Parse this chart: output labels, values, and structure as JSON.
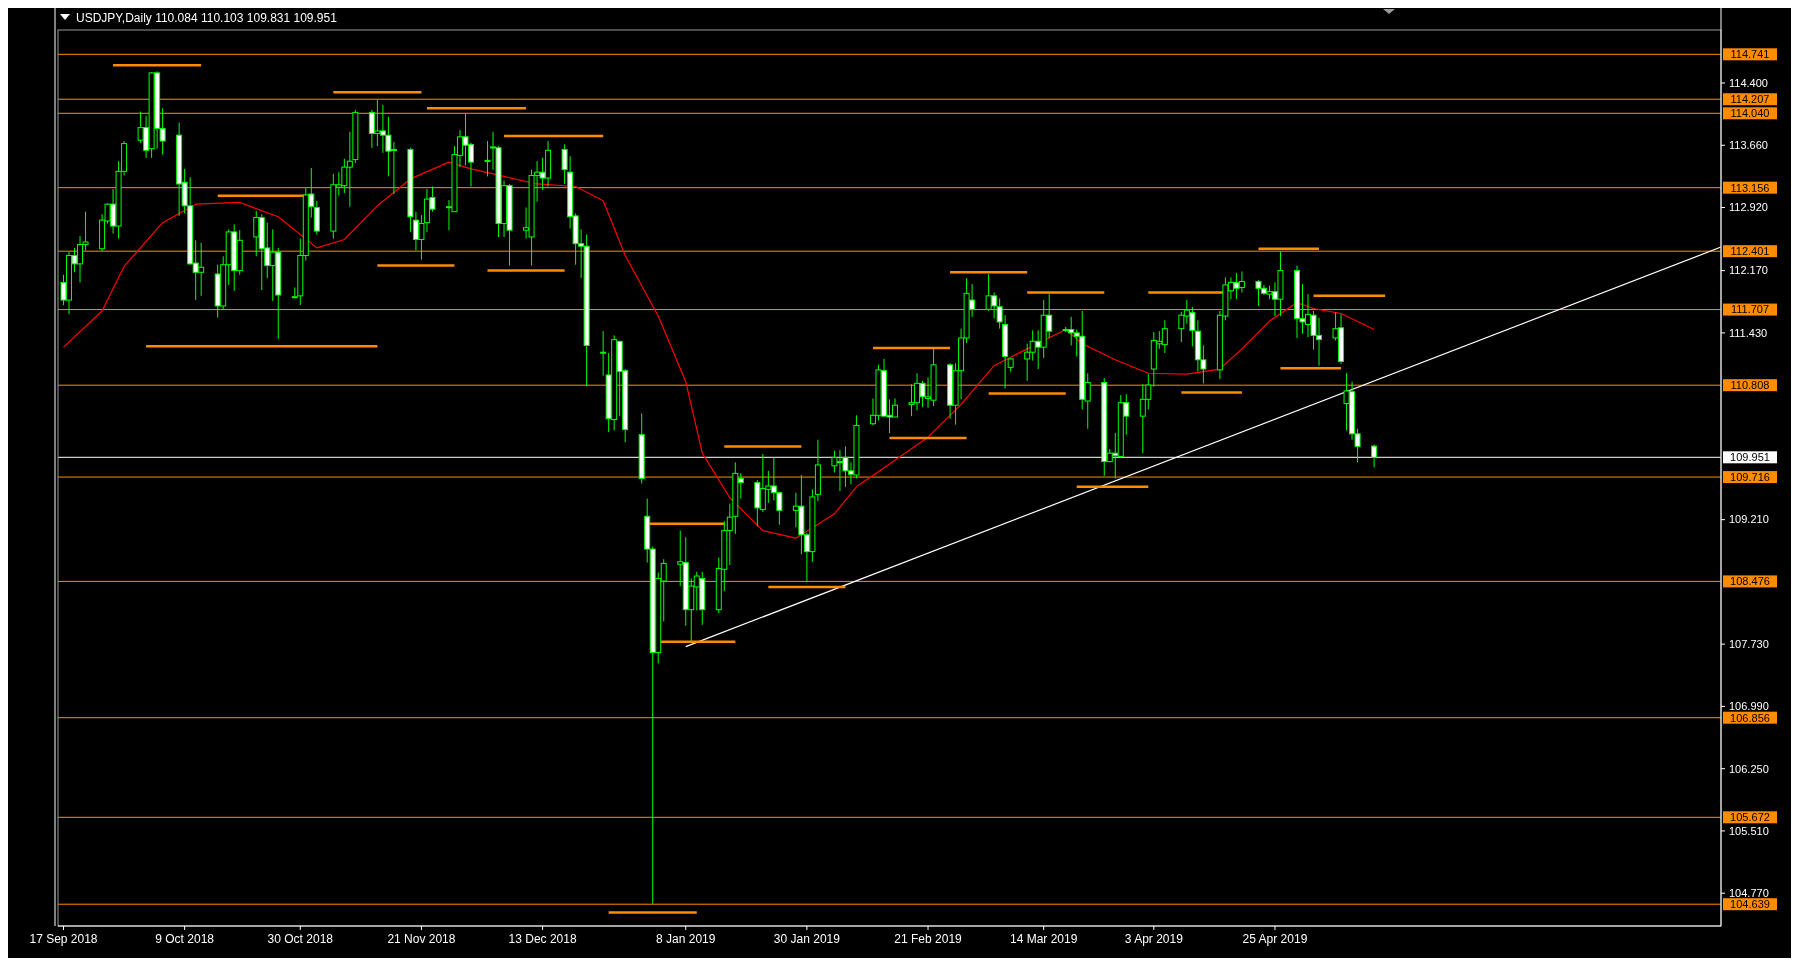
{
  "chart_data": {
    "type": "candlestick",
    "title": "USDJPY,Daily  110.084 110.103 109.831 109.951",
    "color": "#00ff00",
    "x": [
      "2018-09-17",
      "2018-09-18",
      "2018-09-19",
      "2018-09-20",
      "2018-09-21",
      "2018-09-24",
      "2018-09-25",
      "2018-09-26",
      "2018-09-27",
      "2018-09-28",
      "2018-10-01",
      "2018-10-02",
      "2018-10-03",
      "2018-10-04",
      "2018-10-05",
      "2018-10-08",
      "2018-10-09",
      "2018-10-10",
      "2018-10-11",
      "2018-10-12",
      "2018-10-15",
      "2018-10-16",
      "2018-10-17",
      "2018-10-18",
      "2018-10-19",
      "2018-10-22",
      "2018-10-23",
      "2018-10-24",
      "2018-10-25",
      "2018-10-26",
      "2018-10-29",
      "2018-10-30",
      "2018-10-31",
      "2018-11-01",
      "2018-11-02",
      "2018-11-05",
      "2018-11-06",
      "2018-11-07",
      "2018-11-08",
      "2018-11-09",
      "2018-11-12",
      "2018-11-13",
      "2018-11-14",
      "2018-11-15",
      "2018-11-16",
      "2018-11-19",
      "2018-11-20",
      "2018-11-21",
      "2018-11-22",
      "2018-11-23",
      "2018-11-26",
      "2018-11-27",
      "2018-11-28",
      "2018-11-29",
      "2018-11-30",
      "2018-12-03",
      "2018-12-04",
      "2018-12-05",
      "2018-12-06",
      "2018-12-07",
      "2018-12-10",
      "2018-12-11",
      "2018-12-12",
      "2018-12-13",
      "2018-12-14",
      "2018-12-17",
      "2018-12-18",
      "2018-12-19",
      "2018-12-20",
      "2018-12-21",
      "2018-12-24",
      "2018-12-25",
      "2018-12-26",
      "2018-12-27",
      "2018-12-28",
      "2018-12-31",
      "2019-01-01",
      "2019-01-02",
      "2019-01-03",
      "2019-01-04",
      "2019-01-07",
      "2019-01-08",
      "2019-01-09",
      "2019-01-10",
      "2019-01-11",
      "2019-01-14",
      "2019-01-15",
      "2019-01-16",
      "2019-01-17",
      "2019-01-18",
      "2019-01-21",
      "2019-01-22",
      "2019-01-23",
      "2019-01-24",
      "2019-01-25",
      "2019-01-28",
      "2019-01-29",
      "2019-01-30",
      "2019-01-31",
      "2019-02-01",
      "2019-02-04",
      "2019-02-05",
      "2019-02-06",
      "2019-02-07",
      "2019-02-08",
      "2019-02-11",
      "2019-02-12",
      "2019-02-13",
      "2019-02-14",
      "2019-02-15",
      "2019-02-18",
      "2019-02-19",
      "2019-02-20",
      "2019-02-21",
      "2019-02-22",
      "2019-02-25",
      "2019-02-26",
      "2019-02-27",
      "2019-02-28",
      "2019-03-01",
      "2019-03-04",
      "2019-03-05",
      "2019-03-06",
      "2019-03-07",
      "2019-03-08",
      "2019-03-11",
      "2019-03-12",
      "2019-03-13",
      "2019-03-14",
      "2019-03-15",
      "2019-03-18",
      "2019-03-19",
      "2019-03-20",
      "2019-03-21",
      "2019-03-22",
      "2019-03-25",
      "2019-03-26",
      "2019-03-27",
      "2019-03-28",
      "2019-03-29",
      "2019-04-01",
      "2019-04-02",
      "2019-04-03",
      "2019-04-04",
      "2019-04-05",
      "2019-04-08",
      "2019-04-09",
      "2019-04-10",
      "2019-04-11",
      "2019-04-12",
      "2019-04-15",
      "2019-04-16",
      "2019-04-17",
      "2019-04-18",
      "2019-04-19",
      "2019-04-22",
      "2019-04-23",
      "2019-04-24",
      "2019-04-25",
      "2019-04-26",
      "2019-04-29",
      "2019-04-30",
      "2019-05-01",
      "2019-05-02",
      "2019-05-03",
      "2019-05-06",
      "2019-05-07",
      "2019-05-08",
      "2019-05-09",
      "2019-05-10",
      "2019-05-13"
    ],
    "ohlc": [
      [
        112.03,
        112.12,
        111.76,
        111.82
      ],
      [
        111.82,
        112.39,
        111.65,
        112.35
      ],
      [
        112.35,
        112.44,
        112.15,
        112.25
      ],
      [
        112.25,
        112.58,
        112.03,
        112.48
      ],
      [
        112.48,
        112.87,
        112.41,
        112.51
      ],
      [
        112.43,
        112.84,
        112.4,
        112.77
      ],
      [
        112.76,
        112.97,
        112.73,
        112.96
      ],
      [
        112.96,
        113.14,
        112.61,
        112.7
      ],
      [
        112.7,
        113.47,
        112.55,
        113.35
      ],
      [
        113.35,
        113.71,
        113.3,
        113.68
      ],
      [
        113.72,
        114.06,
        113.69,
        113.87
      ],
      [
        113.87,
        114.01,
        113.51,
        113.6
      ],
      [
        113.62,
        114.53,
        113.51,
        114.52
      ],
      [
        114.52,
        114.54,
        113.62,
        113.86
      ],
      [
        113.86,
        114.1,
        113.55,
        113.71
      ],
      [
        113.78,
        113.93,
        112.82,
        113.2
      ],
      [
        113.22,
        113.38,
        112.85,
        112.94
      ],
      [
        112.94,
        113.28,
        112.24,
        112.25
      ],
      [
        112.26,
        112.53,
        111.82,
        112.15
      ],
      [
        112.15,
        112.5,
        111.87,
        112.21
      ],
      [
        112.13,
        112.24,
        111.61,
        111.75
      ],
      [
        111.75,
        112.34,
        111.71,
        112.24
      ],
      [
        112.24,
        112.66,
        112.0,
        112.63
      ],
      [
        112.63,
        112.72,
        111.93,
        112.17
      ],
      [
        112.17,
        112.65,
        112.12,
        112.53
      ],
      [
        112.57,
        112.88,
        112.34,
        112.8
      ],
      [
        112.8,
        112.84,
        111.94,
        112.43
      ],
      [
        112.44,
        112.74,
        112.08,
        112.23
      ],
      [
        112.23,
        112.66,
        111.81,
        112.39
      ],
      [
        112.39,
        112.44,
        111.36,
        111.88
      ],
      [
        111.86,
        111.97,
        111.84,
        111.86
      ],
      [
        111.87,
        112.55,
        111.76,
        112.35
      ],
      [
        112.35,
        113.15,
        112.29,
        113.07
      ],
      [
        113.08,
        113.39,
        112.8,
        112.93
      ],
      [
        112.92,
        113.0,
        112.6,
        112.64
      ],
      [
        112.64,
        113.32,
        112.55,
        113.19
      ],
      [
        113.16,
        113.34,
        113.06,
        113.19
      ],
      [
        113.18,
        113.5,
        113.09,
        113.4
      ],
      [
        113.4,
        113.82,
        112.93,
        113.47
      ],
      [
        113.49,
        114.08,
        113.45,
        114.05
      ],
      [
        114.05,
        114.08,
        113.63,
        113.8
      ],
      [
        113.8,
        114.2,
        113.65,
        113.83
      ],
      [
        113.83,
        114.14,
        113.57,
        113.78
      ],
      [
        113.78,
        114.0,
        113.29,
        113.59
      ],
      [
        113.61,
        113.7,
        113.08,
        113.61
      ],
      [
        113.61,
        113.63,
        112.63,
        112.81
      ],
      [
        112.77,
        112.87,
        112.41,
        112.54
      ],
      [
        112.54,
        112.83,
        112.3,
        112.73
      ],
      [
        112.74,
        113.14,
        112.63,
        113.02
      ],
      [
        113.04,
        113.17,
        112.87,
        112.9
      ],
      [
        112.93,
        113.01,
        112.65,
        112.93
      ],
      [
        112.87,
        113.65,
        112.87,
        113.55
      ],
      [
        113.54,
        113.84,
        113.4,
        113.76
      ],
      [
        113.76,
        114.04,
        113.42,
        113.66
      ],
      [
        113.67,
        113.69,
        113.17,
        113.46
      ],
      [
        113.47,
        113.71,
        113.29,
        113.48
      ],
      [
        113.64,
        113.82,
        113.37,
        113.64
      ],
      [
        113.63,
        113.65,
        112.57,
        112.73
      ],
      [
        112.73,
        113.24,
        112.57,
        113.18
      ],
      [
        113.18,
        113.2,
        112.23,
        112.65
      ],
      [
        112.65,
        112.92,
        112.55,
        112.68
      ],
      [
        112.57,
        113.37,
        112.23,
        113.3
      ],
      [
        113.3,
        113.47,
        112.99,
        113.34
      ],
      [
        113.34,
        113.51,
        113.13,
        113.27
      ],
      [
        113.27,
        113.71,
        113.17,
        113.6
      ],
      [
        113.61,
        113.67,
        113.2,
        113.37
      ],
      [
        113.34,
        113.53,
        112.67,
        112.81
      ],
      [
        112.82,
        112.85,
        112.24,
        112.49
      ],
      [
        112.49,
        112.66,
        112.08,
        112.46
      ],
      [
        112.46,
        112.6,
        110.8,
        111.28
      ],
      [
        111.2,
        111.45,
        110.92,
        111.2
      ],
      [
        110.93,
        111.19,
        110.25,
        110.41
      ],
      [
        110.4,
        111.4,
        110.27,
        111.35
      ],
      [
        111.33,
        111.33,
        110.44,
        110.97
      ],
      [
        110.98,
        111.0,
        110.13,
        110.28
      ],
      [
        110.22,
        110.47,
        109.64,
        109.7
      ],
      [
        109.25,
        109.46,
        108.7,
        108.86
      ],
      [
        108.86,
        108.89,
        104.64,
        107.63
      ],
      [
        107.63,
        108.58,
        107.5,
        108.51
      ],
      [
        108.48,
        108.74,
        108.0,
        108.69
      ],
      [
        108.68,
        109.08,
        108.42,
        108.71
      ],
      [
        108.7,
        109.0,
        107.95,
        108.14
      ],
      [
        108.14,
        108.51,
        107.75,
        108.42
      ],
      [
        108.41,
        108.59,
        108.13,
        108.54
      ],
      [
        108.51,
        108.59,
        107.96,
        108.14
      ],
      [
        108.14,
        108.76,
        108.1,
        108.63
      ],
      [
        108.62,
        109.19,
        108.36,
        109.08
      ],
      [
        109.08,
        109.4,
        108.67,
        109.24
      ],
      [
        109.25,
        109.89,
        109.04,
        109.76
      ],
      [
        109.7,
        109.76,
        109.46,
        109.65
      ],
      [
        109.65,
        109.68,
        109.13,
        109.35
      ],
      [
        109.33,
        109.99,
        109.3,
        109.58
      ],
      [
        109.57,
        109.79,
        109.41,
        109.61
      ],
      [
        109.61,
        109.95,
        109.44,
        109.53
      ],
      [
        109.53,
        109.54,
        109.15,
        109.32
      ],
      [
        109.32,
        109.53,
        109.12,
        109.37
      ],
      [
        109.37,
        109.74,
        108.8,
        109.03
      ],
      [
        109.03,
        109.05,
        108.47,
        108.83
      ],
      [
        108.83,
        109.57,
        108.71,
        109.48
      ],
      [
        109.51,
        110.16,
        109.43,
        109.86
      ],
      [
        109.85,
        110.03,
        109.77,
        109.95
      ],
      [
        109.9,
        110.04,
        109.55,
        109.9
      ],
      [
        109.95,
        110.08,
        109.6,
        109.79
      ],
      [
        109.79,
        109.89,
        109.63,
        109.75
      ],
      [
        109.74,
        110.45,
        109.7,
        110.33
      ],
      [
        110.35,
        110.65,
        110.33,
        110.45
      ],
      [
        110.45,
        111.05,
        110.39,
        110.99
      ],
      [
        110.98,
        111.12,
        110.44,
        110.44
      ],
      [
        110.45,
        110.64,
        110.24,
        110.43
      ],
      [
        110.43,
        110.65,
        110.43,
        110.57
      ],
      [
        110.58,
        110.82,
        110.44,
        110.6
      ],
      [
        110.6,
        110.95,
        110.51,
        110.83
      ],
      [
        110.83,
        110.86,
        110.55,
        110.67
      ],
      [
        110.65,
        110.9,
        110.54,
        110.67
      ],
      [
        110.63,
        111.24,
        110.56,
        111.05
      ],
      [
        111.05,
        111.07,
        110.41,
        110.57
      ],
      [
        110.57,
        111.07,
        110.34,
        110.98
      ],
      [
        110.98,
        111.48,
        110.64,
        111.37
      ],
      [
        111.37,
        112.08,
        111.31,
        111.9
      ],
      [
        111.82,
        112.01,
        111.62,
        111.71
      ],
      [
        111.71,
        112.13,
        111.69,
        111.87
      ],
      [
        111.87,
        111.91,
        111.6,
        111.75
      ],
      [
        111.74,
        111.84,
        111.48,
        111.56
      ],
      [
        111.53,
        111.64,
        110.77,
        111.15
      ],
      [
        111.02,
        111.13,
        110.97,
        111.12
      ],
      [
        111.12,
        111.3,
        110.86,
        111.2
      ],
      [
        111.2,
        111.46,
        111.1,
        111.33
      ],
      [
        111.33,
        111.46,
        111.0,
        111.26
      ],
      [
        111.26,
        111.82,
        111.13,
        111.64
      ],
      [
        111.64,
        111.89,
        111.37,
        111.45
      ],
      [
        111.47,
        111.5,
        111.44,
        111.47
      ],
      [
        111.47,
        111.62,
        111.28,
        111.43
      ],
      [
        111.43,
        111.47,
        111.15,
        111.39
      ],
      [
        111.39,
        111.69,
        110.52,
        110.64
      ],
      [
        110.62,
        110.95,
        110.29,
        110.84
      ],
      [
        110.84,
        110.89,
        109.73,
        109.9
      ],
      [
        109.9,
        110.05,
        109.89,
        110.0
      ],
      [
        110.0,
        110.24,
        109.7,
        109.97
      ],
      [
        109.96,
        110.69,
        109.94,
        110.6
      ],
      [
        110.6,
        110.7,
        110.22,
        110.44
      ],
      [
        110.44,
        110.82,
        110.0,
        110.64
      ],
      [
        110.64,
        110.94,
        110.52,
        110.81
      ],
      [
        111.0,
        111.44,
        110.79,
        111.34
      ],
      [
        111.3,
        111.45,
        111.24,
        111.33
      ],
      [
        111.29,
        111.58,
        111.19,
        111.48
      ],
      [
        111.48,
        111.68,
        111.32,
        111.64
      ],
      [
        111.63,
        111.82,
        111.54,
        111.7
      ],
      [
        111.67,
        111.74,
        111.27,
        111.46
      ],
      [
        111.45,
        111.58,
        110.97,
        111.11
      ],
      [
        111.11,
        111.28,
        110.83,
        111.0
      ],
      [
        110.99,
        111.69,
        110.88,
        111.64
      ],
      [
        111.63,
        112.09,
        111.58,
        112.0
      ],
      [
        111.93,
        112.09,
        111.83,
        112.03
      ],
      [
        112.03,
        112.14,
        111.83,
        111.96
      ],
      [
        111.97,
        112.16,
        111.91,
        112.04
      ],
      [
        112.04,
        112.06,
        111.75,
        111.96
      ],
      [
        111.96,
        112.0,
        111.88,
        111.9
      ],
      [
        111.89,
        111.99,
        111.83,
        111.92
      ],
      [
        111.92,
        112.03,
        111.63,
        111.83
      ],
      [
        111.83,
        112.4,
        111.63,
        112.17
      ],
      [
        112.17,
        112.23,
        111.37,
        111.6
      ],
      [
        111.6,
        112.01,
        111.42,
        111.56
      ],
      [
        111.53,
        111.89,
        111.38,
        111.65
      ],
      [
        111.64,
        111.69,
        111.23,
        111.4
      ],
      [
        111.4,
        111.61,
        111.04,
        111.35
      ],
      [
        111.37,
        111.67,
        111.34,
        111.48
      ],
      [
        111.49,
        111.65,
        111.06,
        111.09
      ],
      [
        110.59,
        110.95,
        110.27,
        110.74
      ],
      [
        110.73,
        110.85,
        110.16,
        110.23
      ],
      [
        110.23,
        110.29,
        109.89,
        110.08
      ],
      [
        110.084,
        110.103,
        109.831,
        109.951
      ]
    ],
    "series": [
      {
        "type": "line",
        "color": "#ff0000",
        "x": [
          "2018-09-17",
          "2018-09-24",
          "2018-09-28",
          "2018-10-05",
          "2018-10-11",
          "2018-10-19",
          "2018-10-26",
          "2018-11-02",
          "2018-11-07",
          "2018-11-13",
          "2018-11-19",
          "2018-11-26",
          "2018-11-30",
          "2018-12-06",
          "2018-12-12",
          "2018-12-19",
          "2018-12-24",
          "2018-12-28",
          "2019-01-03",
          "2019-01-08",
          "2019-01-11",
          "2019-01-16",
          "2019-01-22",
          "2019-01-28",
          "2019-02-04",
          "2019-02-08",
          "2019-02-14",
          "2019-02-21",
          "2019-02-27",
          "2019-03-05",
          "2019-03-11",
          "2019-03-18",
          "2019-03-21",
          "2019-03-27",
          "2019-04-02",
          "2019-04-09",
          "2019-04-15",
          "2019-04-19",
          "2019-04-24",
          "2019-04-29",
          "2019-05-02",
          "2019-05-07",
          "2019-05-13"
        ],
        "values": [
          111.26,
          111.69,
          112.22,
          112.74,
          112.96,
          112.98,
          112.81,
          112.44,
          112.54,
          112.94,
          113.26,
          113.46,
          113.38,
          113.29,
          113.2,
          113.17,
          113.0,
          112.35,
          111.63,
          110.85,
          110.0,
          109.47,
          109.08,
          108.99,
          109.28,
          109.6,
          109.87,
          110.19,
          110.58,
          111.04,
          111.24,
          111.47,
          111.3,
          111.11,
          110.95,
          110.94,
          111.0,
          111.24,
          111.57,
          111.79,
          111.72,
          111.66,
          111.47
        ]
      },
      {
        "type": "line",
        "color": "#ffffff",
        "x": [
          "2019-01-08",
          "2019-07-15"
        ],
        "values": [
          107.7,
          112.45
        ]
      },
      {
        "type": "line",
        "color": "#ff8c00",
        "x": [
          "2018-09-26",
          "2018-10-12"
        ],
        "values": [
          114.61,
          114.61
        ]
      },
      {
        "type": "line",
        "color": "#ff8c00",
        "x": [
          "2018-11-05",
          "2018-11-21"
        ],
        "values": [
          114.29,
          114.29
        ]
      },
      {
        "type": "line",
        "color": "#ff8c00",
        "x": [
          "2018-11-22",
          "2018-12-10"
        ],
        "values": [
          114.1,
          114.1
        ]
      },
      {
        "type": "line",
        "color": "#ff8c00",
        "x": [
          "2018-12-06",
          "2018-12-24"
        ],
        "values": [
          113.77,
          113.77
        ]
      },
      {
        "type": "line",
        "color": "#ff8c00",
        "x": [
          "2018-10-15",
          "2018-10-31"
        ],
        "values": [
          113.06,
          113.06
        ]
      },
      {
        "type": "line",
        "color": "#ff8c00",
        "x": [
          "2018-11-13",
          "2018-11-27"
        ],
        "values": [
          112.23,
          112.23
        ]
      },
      {
        "type": "line",
        "color": "#ff8c00",
        "x": [
          "2018-12-03",
          "2018-12-17"
        ],
        "values": [
          112.17,
          112.17
        ]
      },
      {
        "type": "line",
        "color": "#ff8c00",
        "x": [
          "2018-10-02",
          "2018-11-13"
        ],
        "values": [
          111.27,
          111.27
        ]
      },
      {
        "type": "line",
        "color": "#ff8c00",
        "x": [
          "2018-12-25",
          "2019-01-10"
        ],
        "values": [
          104.54,
          104.54
        ]
      },
      {
        "type": "line",
        "color": "#ff8c00",
        "x": [
          "2019-01-01",
          "2019-01-15"
        ],
        "values": [
          109.16,
          109.16
        ]
      },
      {
        "type": "line",
        "color": "#ff8c00",
        "x": [
          "2019-01-03",
          "2019-01-17"
        ],
        "values": [
          107.76,
          107.76
        ]
      },
      {
        "type": "line",
        "color": "#ff8c00",
        "x": [
          "2019-01-15",
          "2019-01-29"
        ],
        "values": [
          110.08,
          110.08
        ]
      },
      {
        "type": "line",
        "color": "#ff8c00",
        "x": [
          "2019-01-23",
          "2019-02-06"
        ],
        "values": [
          108.41,
          108.41
        ]
      },
      {
        "type": "line",
        "color": "#ff8c00",
        "x": [
          "2019-02-11",
          "2019-02-25"
        ],
        "values": [
          111.25,
          111.25
        ]
      },
      {
        "type": "line",
        "color": "#ff8c00",
        "x": [
          "2019-02-14",
          "2019-02-28"
        ],
        "values": [
          110.18,
          110.18
        ]
      },
      {
        "type": "line",
        "color": "#ff8c00",
        "x": [
          "2019-02-25",
          "2019-03-11"
        ],
        "values": [
          112.15,
          112.15
        ]
      },
      {
        "type": "line",
        "color": "#ff8c00",
        "x": [
          "2019-03-04",
          "2019-03-18"
        ],
        "values": [
          110.71,
          110.71
        ]
      },
      {
        "type": "line",
        "color": "#ff8c00",
        "x": [
          "2019-03-11",
          "2019-03-25"
        ],
        "values": [
          111.91,
          111.91
        ]
      },
      {
        "type": "line",
        "color": "#ff8c00",
        "x": [
          "2019-03-20",
          "2019-04-02"
        ],
        "values": [
          109.6,
          109.6
        ]
      },
      {
        "type": "line",
        "color": "#ff8c00",
        "x": [
          "2019-04-02",
          "2019-04-16"
        ],
        "values": [
          111.91,
          111.91
        ]
      },
      {
        "type": "line",
        "color": "#ff8c00",
        "x": [
          "2019-04-08",
          "2019-04-19"
        ],
        "values": [
          110.72,
          110.72
        ]
      },
      {
        "type": "line",
        "color": "#ff8c00",
        "x": [
          "2019-04-22",
          "2019-05-03"
        ],
        "values": [
          112.43,
          112.43
        ]
      },
      {
        "type": "line",
        "color": "#ff8c00",
        "x": [
          "2019-04-26",
          "2019-05-07"
        ],
        "values": [
          111.01,
          111.01
        ]
      },
      {
        "type": "line",
        "color": "#ff8c00",
        "x": [
          "2019-05-02",
          "2019-05-15"
        ],
        "values": [
          111.87,
          111.87
        ]
      }
    ],
    "ref_lines": [
      {
        "axis": "y",
        "value": 114.741,
        "label": "114.741",
        "color": "#ff8c00"
      },
      {
        "axis": "y",
        "value": 114.207,
        "label": "114.207",
        "color": "#ff8c00"
      },
      {
        "axis": "y",
        "value": 114.04,
        "label": "114.040",
        "color": "#ff8c00"
      },
      {
        "axis": "y",
        "value": 113.156,
        "label": "113.156",
        "color": "#ff8c00"
      },
      {
        "axis": "y",
        "value": 112.401,
        "label": "112.401",
        "color": "#ff8c00"
      },
      {
        "axis": "y",
        "value": 111.707,
        "label": "111.707",
        "color": "#ff8c00"
      },
      {
        "axis": "y",
        "value": 110.808,
        "label": "110.808",
        "color": "#ff8c00"
      },
      {
        "axis": "y",
        "value": 109.951,
        "label": "109.951",
        "color": "#ffffff"
      },
      {
        "axis": "y",
        "value": 109.716,
        "label": "109.716",
        "color": "#ff8c00"
      },
      {
        "axis": "y",
        "value": 108.476,
        "label": "108.476",
        "color": "#ff8c00"
      },
      {
        "axis": "y",
        "value": 106.856,
        "label": "106.856",
        "color": "#ff8c00"
      },
      {
        "axis": "y",
        "value": 105.672,
        "label": "105.672",
        "color": "#ff8c00"
      },
      {
        "axis": "y",
        "value": 104.639,
        "label": "104.639",
        "color": "#ff8c00"
      }
    ],
    "xlim": [
      "2018-09-16",
      "2019-07-15"
    ],
    "xticks": [
      {
        "value": "2018-09-17",
        "label": "17 Sep 2018"
      },
      {
        "value": "2018-10-09",
        "label": "9 Oct 2018"
      },
      {
        "value": "2018-10-30",
        "label": "30 Oct 2018"
      },
      {
        "value": "2018-11-21",
        "label": "21 Nov 2018"
      },
      {
        "value": "2018-12-13",
        "label": "13 Dec 2018"
      },
      {
        "value": "2019-01-08",
        "label": "8 Jan 2019"
      },
      {
        "value": "2019-01-30",
        "label": "30 Jan 2019"
      },
      {
        "value": "2019-02-21",
        "label": "21 Feb 2019"
      },
      {
        "value": "2019-03-14",
        "label": "14 Mar 2019"
      },
      {
        "value": "2019-04-03",
        "label": "3 Apr 2019"
      },
      {
        "value": "2019-04-25",
        "label": "25 Apr 2019"
      }
    ],
    "ylim": [
      104.38,
      115.03
    ],
    "yticks": [
      {
        "value": 114.4,
        "label": "114.400"
      },
      {
        "value": 113.66,
        "label": "113.660"
      },
      {
        "value": 112.92,
        "label": "112.920"
      },
      {
        "value": 112.17,
        "label": "112.170"
      },
      {
        "value": 111.43,
        "label": "111.430"
      },
      {
        "value": 109.21,
        "label": "109.210"
      },
      {
        "value": 107.73,
        "label": "107.730"
      },
      {
        "value": 106.99,
        "label": "106.990"
      },
      {
        "value": 106.25,
        "label": "106.250"
      },
      {
        "value": 105.51,
        "label": "105.510"
      },
      {
        "value": 104.77,
        "label": "104.770"
      }
    ]
  }
}
